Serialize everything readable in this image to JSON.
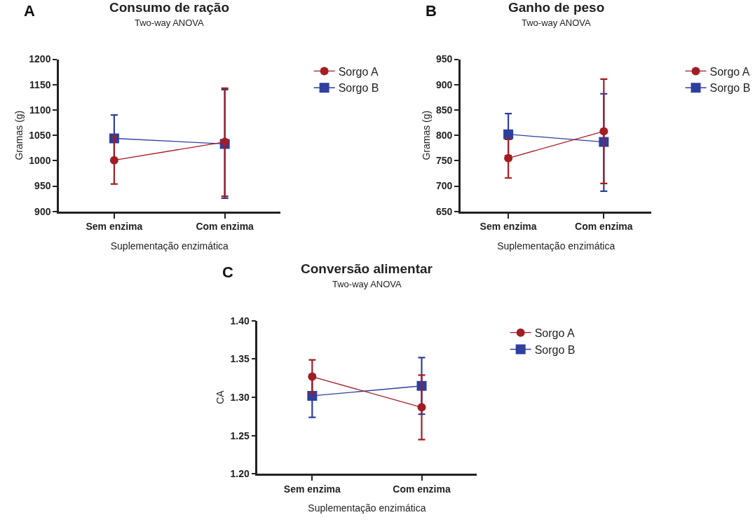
{
  "chart_data": [
    {
      "type": "line",
      "title": "Consumo de ração",
      "subtitle": "Two-way ANOVA",
      "annotations": [
        "A"
      ],
      "xlabel": "Suplementação enzimática",
      "ylabel": "Gramas (g)",
      "categories": [
        "Sem enzima",
        "Com enzima"
      ],
      "ylim": [
        900,
        1200
      ],
      "yticks": [
        900,
        950,
        1000,
        1050,
        1100,
        1150,
        1200
      ],
      "legend": "top right",
      "series": [
        {
          "name": "Sorgo A",
          "color": "#a31d24",
          "marker": "circle",
          "values": [
            1001,
            1037
          ],
          "errors": [
            [
              954,
              1048
            ],
            [
              930,
              1143
            ]
          ]
        },
        {
          "name": "Sorgo B",
          "color": "#2e3f9e",
          "marker": "square",
          "values": [
            1044,
            1033
          ],
          "errors": [
            46,
            [
              926,
              1140
            ]
          ]
        }
      ]
    },
    {
      "type": "line",
      "title": "Ganho de peso",
      "subtitle": "Two-way ANOVA",
      "annotations": [
        "B"
      ],
      "xlabel": "Suplementação enzimática",
      "ylabel": "Gramas (g)",
      "categories": [
        "Sem enzima",
        "Com enzima"
      ],
      "ylim": [
        650,
        950
      ],
      "yticks": [
        650,
        700,
        750,
        800,
        850,
        900,
        950
      ],
      "legend": "top right",
      "series": [
        {
          "name": "Sorgo A",
          "color": "#a31d24",
          "marker": "circle",
          "values": [
            755,
            808
          ],
          "errors": [
            [
              716,
              792
            ],
            [
              705,
              911
            ]
          ]
        },
        {
          "name": "Sorgo B",
          "color": "#2e3f9e",
          "marker": "square",
          "values": [
            802,
            787
          ],
          "errors": [
            [
              760,
              843
            ],
            [
              690,
              882
            ]
          ]
        }
      ]
    },
    {
      "type": "line",
      "title": "Conversão alimentar",
      "subtitle": "Two-way ANOVA",
      "annotations": [
        "C"
      ],
      "xlabel": "Suplementação enzimática",
      "ylabel": "CA",
      "categories": [
        "Sem enzima",
        "Com enzima"
      ],
      "ylim": [
        1.2,
        1.4
      ],
      "yticks": [
        {
          "value": 1.2,
          "label": "1.20"
        },
        {
          "value": 1.25,
          "label": "1.25"
        },
        {
          "value": 1.3,
          "label": "1.30"
        },
        {
          "value": 1.35,
          "label": "1.35"
        },
        {
          "value": 1.4,
          "label": "1.40"
        }
      ],
      "legend": "top right",
      "series": [
        {
          "name": "Sorgo A",
          "color": "#a31d24",
          "marker": "circle",
          "values": [
            1.327,
            1.287
          ],
          "errors": [
            [
              1.305,
              1.349
            ],
            [
              1.245,
              1.329
            ]
          ]
        },
        {
          "name": "Sorgo B",
          "color": "#2e3f9e",
          "marker": "square",
          "values": [
            1.302,
            1.315
          ],
          "errors": [
            0.028,
            [
              1.278,
              1.352
            ]
          ]
        }
      ]
    }
  ]
}
